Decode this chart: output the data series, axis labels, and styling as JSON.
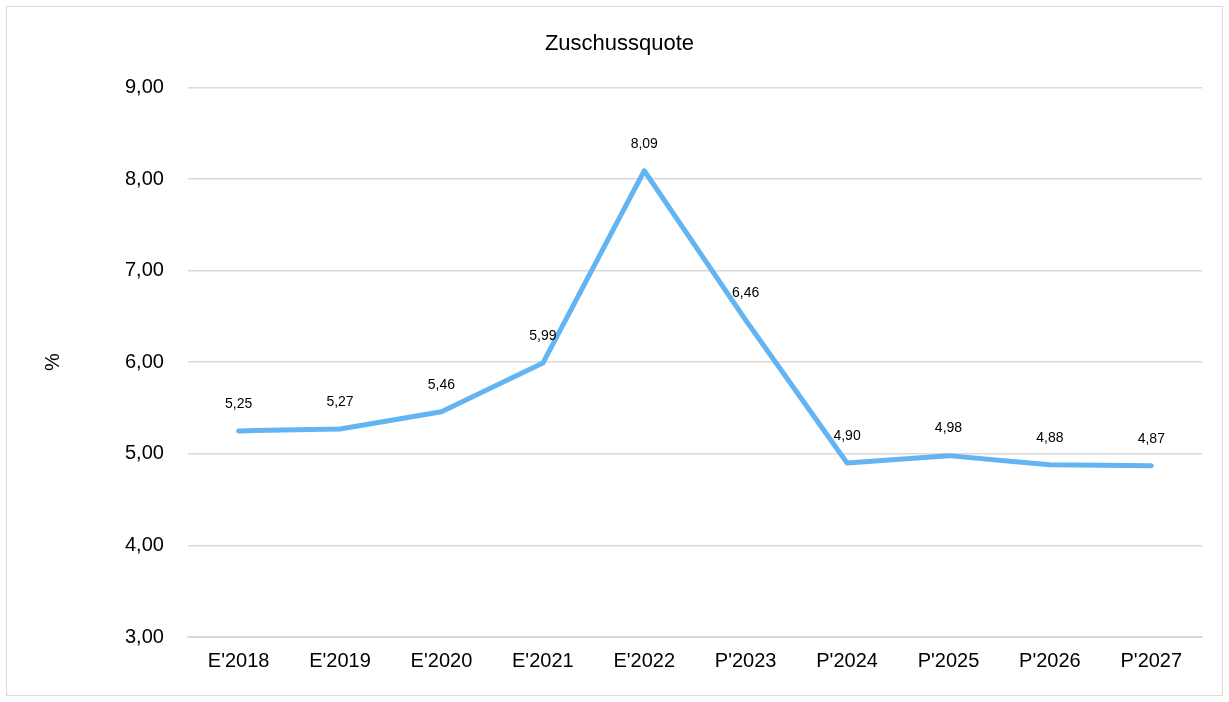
{
  "chart_data": {
    "type": "line",
    "title": "Zuschussquote",
    "ylabel": "%",
    "categories": [
      "E'2018",
      "E'2019",
      "E'2020",
      "E'2021",
      "E'2022",
      "P'2023",
      "P'2024",
      "P'2025",
      "P'2026",
      "P'2027"
    ],
    "series": [
      {
        "color": "#63b4f2",
        "values": [
          5.25,
          5.27,
          5.46,
          5.99,
          8.09,
          6.46,
          4.9,
          4.98,
          4.88,
          4.87
        ],
        "value_labels": [
          "5,25",
          "5,27",
          "5,46",
          "5,99",
          "8,09",
          "6,46",
          "4,90",
          "4,98",
          "4,88",
          "4,87"
        ]
      }
    ],
    "ylim": [
      3,
      9
    ],
    "yticks": [
      {
        "value": 3,
        "label": "3,00"
      },
      {
        "value": 4,
        "label": "4,00"
      },
      {
        "value": 5,
        "label": "5,00"
      },
      {
        "value": 6,
        "label": "6,00"
      },
      {
        "value": 7,
        "label": "7,00"
      },
      {
        "value": 8,
        "label": "8,00"
      },
      {
        "value": 9,
        "label": "9,00"
      }
    ],
    "grid": "y",
    "legend": false,
    "marker": "none",
    "line_style": "solid"
  }
}
